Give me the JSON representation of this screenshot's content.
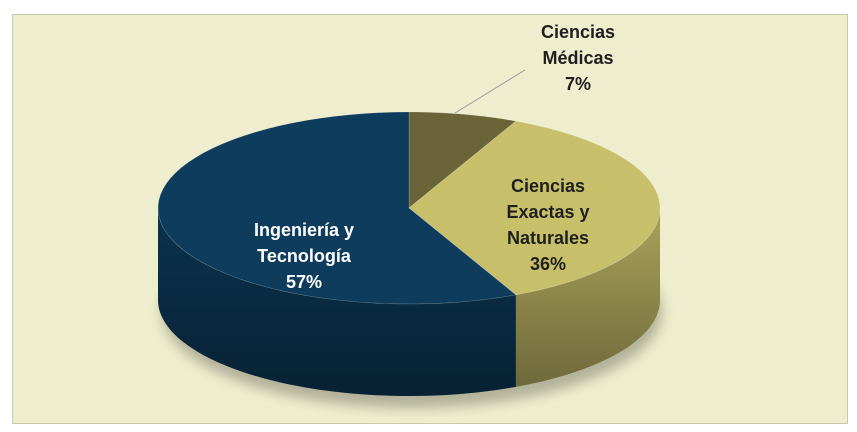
{
  "chart_data": {
    "type": "pie",
    "categories": [
      "Ciencias Médicas",
      "Ciencias Exactas y Naturales",
      "Ingeniería y Tecnología"
    ],
    "values": [
      7,
      36,
      57
    ],
    "value_labels": [
      "7%",
      "36%",
      "57%"
    ],
    "colors": [
      "#6b6439",
      "#c8bf6a",
      "#0e3c5d"
    ],
    "start_angle": 0,
    "direction": "clockwise",
    "three_d": true
  }
}
